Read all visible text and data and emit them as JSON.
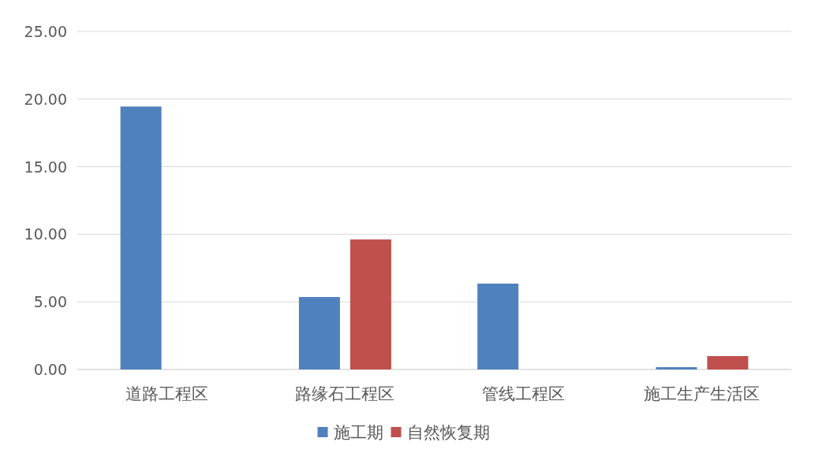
{
  "chart_data": {
    "type": "bar",
    "categories": [
      "道路工程区",
      "路缘石工程区",
      "管线工程区",
      "施工生产生活区"
    ],
    "series": [
      {
        "name": "施工期",
        "color": "#4f81bd",
        "values": [
          19.45,
          5.36,
          6.35,
          0.17
        ]
      },
      {
        "name": "自然恢复期",
        "color": "#c0504d",
        "values": [
          0,
          9.62,
          0,
          0.99
        ]
      }
    ],
    "ylim": [
      0,
      25
    ],
    "yticks": [
      {
        "value": 0,
        "label": "0.00"
      },
      {
        "value": 5,
        "label": "5.00"
      },
      {
        "value": 10,
        "label": "10.00"
      },
      {
        "value": 15,
        "label": "15.00"
      },
      {
        "value": 20,
        "label": "20.00"
      },
      {
        "value": 25,
        "label": "25.00"
      }
    ],
    "grid": "y",
    "legend": "bottom"
  }
}
